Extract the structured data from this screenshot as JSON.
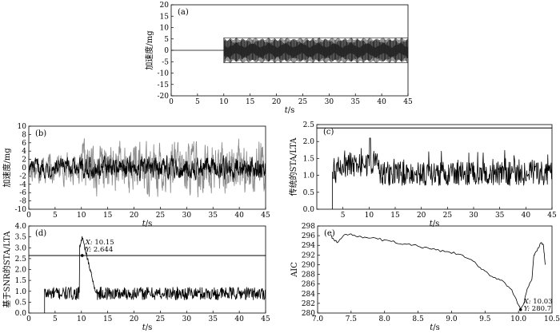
{
  "chart_data": [
    {
      "id": "a",
      "type": "line",
      "panel_label": "(a)",
      "xlabel": "t/s",
      "ylabel": "加速度/mg",
      "xlim": [
        0,
        45
      ],
      "ylim": [
        -20,
        20
      ],
      "xticks": [
        0,
        5,
        10,
        15,
        20,
        25,
        30,
        35,
        40,
        45
      ],
      "yticks": [
        -20,
        -15,
        -10,
        -5,
        0,
        5,
        10,
        15,
        20
      ],
      "series": [
        {
          "description_points": [
            [
              0,
              0
            ],
            [
              10,
              0
            ]
          ],
          "signal": {
            "start": 10,
            "end": 45,
            "amplitude": 5.5
          }
        }
      ],
      "grid": false
    },
    {
      "id": "b",
      "type": "line",
      "panel_label": "(b)",
      "xlabel": "t/s",
      "ylabel": "加速度/mg",
      "xlim": [
        0,
        45
      ],
      "ylim": [
        -10,
        10
      ],
      "xticks": [
        0,
        5,
        10,
        15,
        20,
        25,
        30,
        35,
        40,
        45
      ],
      "yticks": [
        -10,
        -8,
        -6,
        -4,
        -2,
        0,
        2,
        4,
        6,
        8,
        10
      ],
      "series": [
        {
          "color": "#8c8c8c",
          "pre_amplitude": 4,
          "post_amplitude": 7
        },
        {
          "color": "#000000",
          "pre_amplitude": 2.5,
          "post_amplitude": 3
        }
      ],
      "grid": false
    },
    {
      "id": "c",
      "type": "line",
      "panel_label": "(c)",
      "xlabel": "t/s",
      "ylabel": "传统的STA/LTA",
      "xlim": [
        0,
        45
      ],
      "ylim": [
        0,
        2.5
      ],
      "xticks": [
        5,
        10,
        15,
        20,
        25,
        30,
        35,
        40,
        45
      ],
      "yticks": [
        0.0,
        0.5,
        1.0,
        1.5,
        2.0,
        2.5
      ],
      "threshold": 2.4,
      "start": 3,
      "mean": 1.05,
      "peak": {
        "x": 10.2,
        "y": 2.1
      },
      "grid": false
    },
    {
      "id": "d",
      "type": "line",
      "panel_label": "(d)",
      "xlabel": "t/s",
      "ylabel": "基于SNR的STA/LTA",
      "xlim": [
        0,
        45
      ],
      "ylim": [
        0,
        4.0
      ],
      "xticks": [
        0,
        5,
        10,
        15,
        20,
        25,
        30,
        35,
        40,
        45
      ],
      "yticks": [
        0,
        0.5,
        1.0,
        1.5,
        2.0,
        2.5,
        3.0,
        3.5,
        4.0
      ],
      "threshold": 2.644,
      "start": 3,
      "mean": 0.9,
      "peak": {
        "x": 10.15,
        "y": 3.5
      },
      "marker": {
        "x": 10.15,
        "y": 2.644,
        "x_label": "X: 10.15",
        "y_label": "Y: 2.644"
      },
      "grid": false
    },
    {
      "id": "e",
      "type": "line",
      "panel_label": "(e)",
      "xlabel": "t/s",
      "ylabel": "AIC",
      "xlim": [
        7.0,
        10.5
      ],
      "ylim": [
        280,
        298
      ],
      "xticks": [
        7.0,
        7.5,
        8.0,
        8.5,
        9.0,
        9.5,
        10.0,
        10.5
      ],
      "yticks": [
        280,
        282,
        284,
        286,
        288,
        290,
        292,
        294,
        296,
        298
      ],
      "key_points": [
        [
          7.2,
          296.0
        ],
        [
          7.25,
          295.0
        ],
        [
          7.3,
          294.6
        ],
        [
          7.4,
          296.2
        ],
        [
          7.55,
          296.1
        ],
        [
          7.7,
          295.7
        ],
        [
          7.9,
          295.3
        ],
        [
          8.1,
          294.8
        ],
        [
          8.3,
          294.3
        ],
        [
          8.5,
          293.8
        ],
        [
          8.7,
          293.2
        ],
        [
          8.9,
          292.7
        ],
        [
          9.1,
          292.2
        ],
        [
          9.3,
          291.0
        ],
        [
          9.45,
          289.0
        ],
        [
          9.6,
          287.6
        ],
        [
          9.75,
          286.8
        ],
        [
          9.9,
          284.8
        ],
        [
          9.98,
          282.2
        ],
        [
          10.03,
          280.7
        ],
        [
          10.08,
          282.0
        ],
        [
          10.13,
          285.0
        ],
        [
          10.2,
          287.0
        ],
        [
          10.23,
          292.0
        ],
        [
          10.28,
          293.0
        ],
        [
          10.33,
          294.5
        ],
        [
          10.37,
          294.2
        ],
        [
          10.4,
          290.0
        ]
      ],
      "marker": {
        "x": 10.03,
        "y": 280.7,
        "x_label": "X: 10.03",
        "y_label": "Y: 280.7"
      },
      "grid": false
    }
  ]
}
